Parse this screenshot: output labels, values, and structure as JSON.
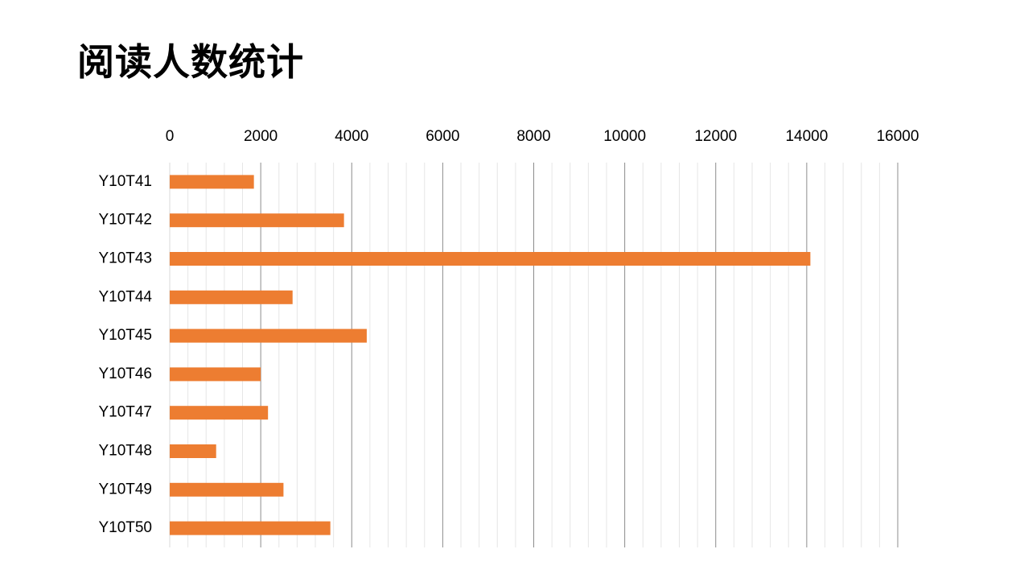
{
  "page": {
    "title": "阅读人数统计"
  },
  "chart_data": {
    "type": "bar",
    "orientation": "horizontal",
    "title": "",
    "xlabel": "",
    "ylabel": "",
    "categories": [
      "Y10T41",
      "Y10T42",
      "Y10T43",
      "Y10T44",
      "Y10T45",
      "Y10T46",
      "Y10T47",
      "Y10T48",
      "Y10T49",
      "Y10T50"
    ],
    "values": [
      1850,
      3830,
      14080,
      2700,
      4330,
      2000,
      2160,
      1020,
      2500,
      3530
    ],
    "xlim": [
      0,
      16000
    ],
    "x_ticks": [
      "0",
      "2000",
      "4000",
      "6000",
      "8000",
      "10000",
      "12000",
      "14000",
      "16000"
    ],
    "x_axis_position": "top",
    "grid": true,
    "legend": "none",
    "bar_color": "#ED7D31",
    "major_grid_color": "#8C8C8C",
    "minor_grid_color": "#E6E6E6"
  }
}
